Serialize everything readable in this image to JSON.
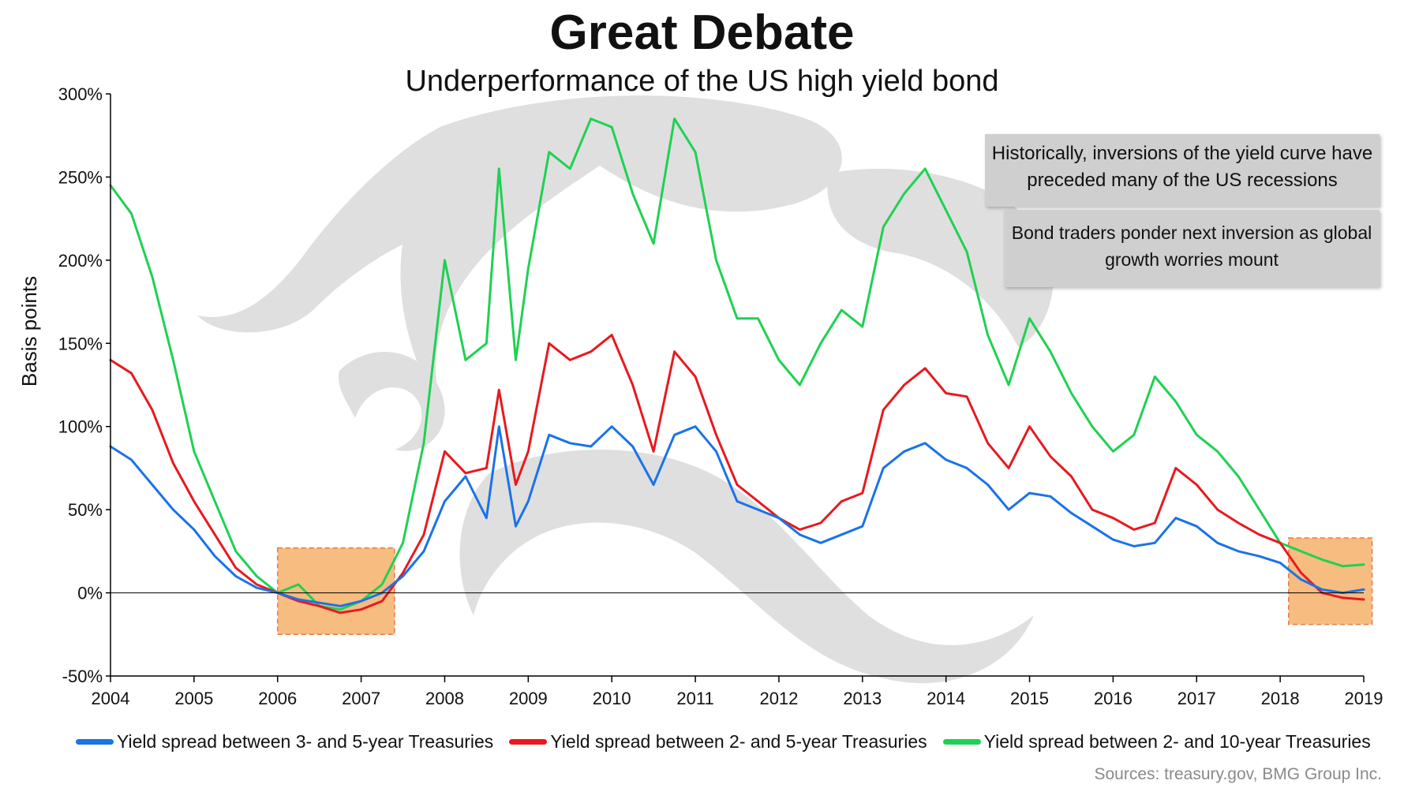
{
  "chart_data": {
    "type": "line",
    "title": "Great Debate",
    "subtitle": "Underperformance of the US high yield bond",
    "ylabel": "Basis points",
    "xlabel": "",
    "ylim": [
      -50,
      300
    ],
    "xlim": [
      2004,
      2019
    ],
    "yticks": [
      "300%",
      "250%",
      "200%",
      "150%",
      "100%",
      "50%",
      "0%",
      "-50%"
    ],
    "ytick_values": [
      300,
      250,
      200,
      150,
      100,
      50,
      0,
      -50
    ],
    "xticks": [
      "2004",
      "2005",
      "2006",
      "2007",
      "2008",
      "2009",
      "2010",
      "2011",
      "2012",
      "2013",
      "2014",
      "2015",
      "2016",
      "2017",
      "2018",
      "2019"
    ],
    "xtick_values": [
      2004,
      2005,
      2006,
      2007,
      2008,
      2009,
      2010,
      2011,
      2012,
      2013,
      2014,
      2015,
      2016,
      2017,
      2018,
      2019
    ],
    "grid": false,
    "legend_position": "bottom",
    "series": [
      {
        "name": "Yield spread between 3- and 5-year Treasuries",
        "color": "#1a73e8",
        "x": [
          2004.0,
          2004.25,
          2004.5,
          2004.75,
          2005.0,
          2005.25,
          2005.5,
          2005.75,
          2006.0,
          2006.25,
          2006.5,
          2006.75,
          2007.0,
          2007.25,
          2007.5,
          2007.75,
          2008.0,
          2008.25,
          2008.5,
          2008.65,
          2008.85,
          2009.0,
          2009.25,
          2009.5,
          2009.75,
          2010.0,
          2010.25,
          2010.5,
          2010.75,
          2011.0,
          2011.25,
          2011.5,
          2011.75,
          2012.0,
          2012.25,
          2012.5,
          2012.75,
          2013.0,
          2013.25,
          2013.5,
          2013.75,
          2014.0,
          2014.25,
          2014.5,
          2014.75,
          2015.0,
          2015.25,
          2015.5,
          2015.75,
          2016.0,
          2016.25,
          2016.5,
          2016.75,
          2017.0,
          2017.25,
          2017.5,
          2017.75,
          2018.0,
          2018.25,
          2018.5,
          2018.75,
          2019.0
        ],
        "y": [
          88,
          80,
          65,
          50,
          38,
          22,
          10,
          3,
          0,
          -4,
          -6,
          -8,
          -5,
          0,
          10,
          25,
          55,
          70,
          45,
          100,
          40,
          55,
          95,
          90,
          88,
          100,
          88,
          65,
          95,
          100,
          85,
          55,
          50,
          45,
          35,
          30,
          35,
          40,
          75,
          85,
          90,
          80,
          75,
          65,
          50,
          60,
          58,
          48,
          40,
          32,
          28,
          30,
          45,
          40,
          30,
          25,
          22,
          18,
          8,
          2,
          0,
          2
        ]
      },
      {
        "name": "Yield spread between 2- and 5-year Treasuries",
        "color": "#e8191f",
        "x": [
          2004.0,
          2004.25,
          2004.5,
          2004.75,
          2005.0,
          2005.25,
          2005.5,
          2005.75,
          2006.0,
          2006.25,
          2006.5,
          2006.75,
          2007.0,
          2007.25,
          2007.5,
          2007.75,
          2008.0,
          2008.25,
          2008.5,
          2008.65,
          2008.85,
          2009.0,
          2009.25,
          2009.5,
          2009.75,
          2010.0,
          2010.25,
          2010.5,
          2010.75,
          2011.0,
          2011.25,
          2011.5,
          2011.75,
          2012.0,
          2012.25,
          2012.5,
          2012.75,
          2013.0,
          2013.25,
          2013.5,
          2013.75,
          2014.0,
          2014.25,
          2014.5,
          2014.75,
          2015.0,
          2015.25,
          2015.5,
          2015.75,
          2016.0,
          2016.25,
          2016.5,
          2016.75,
          2017.0,
          2017.25,
          2017.5,
          2017.75,
          2018.0,
          2018.25,
          2018.5,
          2018.75,
          2019.0
        ],
        "y": [
          140,
          132,
          110,
          78,
          55,
          35,
          15,
          5,
          0,
          -5,
          -8,
          -12,
          -10,
          -5,
          12,
          35,
          85,
          72,
          75,
          122,
          65,
          85,
          150,
          140,
          145,
          155,
          125,
          85,
          145,
          130,
          95,
          65,
          55,
          45,
          38,
          42,
          55,
          60,
          110,
          125,
          135,
          120,
          118,
          90,
          75,
          100,
          82,
          70,
          50,
          45,
          38,
          42,
          75,
          65,
          50,
          42,
          35,
          30,
          12,
          0,
          -3,
          -4
        ]
      },
      {
        "name": "Yield spread between 2- and 10-year Treasuries",
        "color": "#1fd152",
        "x": [
          2004.0,
          2004.25,
          2004.5,
          2004.75,
          2005.0,
          2005.25,
          2005.5,
          2005.75,
          2006.0,
          2006.25,
          2006.5,
          2006.75,
          2007.0,
          2007.25,
          2007.5,
          2007.75,
          2008.0,
          2008.25,
          2008.5,
          2008.65,
          2008.85,
          2009.0,
          2009.25,
          2009.5,
          2009.75,
          2010.0,
          2010.25,
          2010.5,
          2010.75,
          2011.0,
          2011.25,
          2011.5,
          2011.75,
          2012.0,
          2012.25,
          2012.5,
          2012.75,
          2013.0,
          2013.25,
          2013.5,
          2013.75,
          2014.0,
          2014.25,
          2014.5,
          2014.75,
          2015.0,
          2015.25,
          2015.5,
          2015.75,
          2016.0,
          2016.25,
          2016.5,
          2016.75,
          2017.0,
          2017.25,
          2017.5,
          2017.75,
          2018.0,
          2018.25,
          2018.5,
          2018.75,
          2019.0
        ],
        "y": [
          245,
          228,
          190,
          140,
          85,
          55,
          25,
          10,
          0,
          5,
          -8,
          -10,
          -5,
          5,
          30,
          90,
          200,
          140,
          150,
          255,
          140,
          195,
          265,
          255,
          285,
          280,
          240,
          210,
          285,
          265,
          200,
          165,
          165,
          140,
          125,
          150,
          170,
          160,
          220,
          240,
          255,
          230,
          205,
          155,
          125,
          165,
          145,
          120,
          100,
          85,
          95,
          130,
          115,
          95,
          85,
          70,
          50,
          30,
          25,
          20,
          16,
          17
        ]
      }
    ],
    "annotations": [
      "Historically, inversions of the yield curve have preceded many of the US recessions",
      "Bond traders ponder next inversion as global growth worries mount"
    ],
    "highlight_regions": [
      {
        "x_start": 2006.0,
        "x_end": 2007.4,
        "y_start": -25,
        "y_end": 27
      },
      {
        "x_start": 2018.1,
        "x_end": 2019.1,
        "y_start": -19,
        "y_end": 33
      }
    ],
    "source": "Sources: treasury.gov, BMG Group Inc."
  },
  "colors": {
    "highlight_fill": "#f6b06a",
    "highlight_border": "#e87a4a",
    "watermark": "#d9d9d9",
    "axis": "#000000"
  },
  "annotations_text": {
    "note1": "Historically, inversions of the yield curve have preceded many of the US recessions",
    "note2": "Bond traders ponder next inversion as global growth worries mount"
  }
}
